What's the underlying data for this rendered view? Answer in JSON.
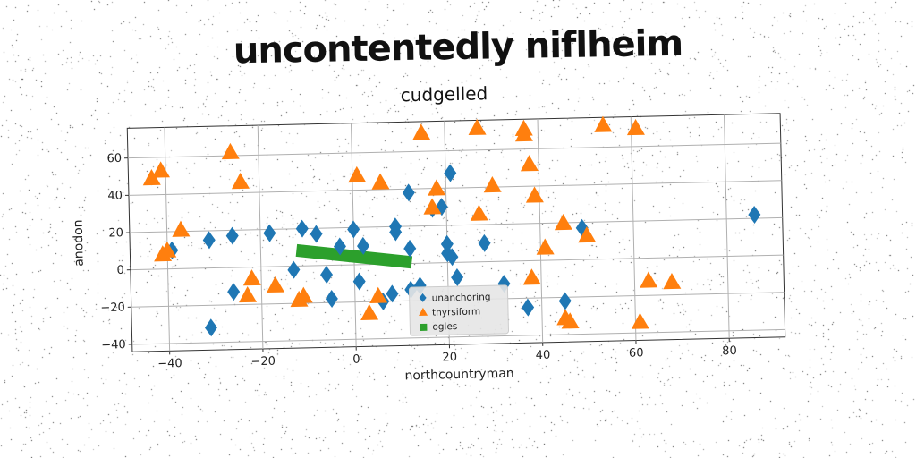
{
  "page_title": "uncontentedly niflheim",
  "chart_data": {
    "type": "scatter",
    "title": "cudgelled",
    "xlabel": "northcountryman",
    "ylabel": "anodon",
    "xlim": [
      -48,
      92
    ],
    "ylim": [
      -44,
      76
    ],
    "xticks": [
      -40,
      -20,
      0,
      20,
      40,
      60,
      80
    ],
    "yticks": [
      -40,
      -20,
      0,
      20,
      40,
      60
    ],
    "grid": true,
    "legend_position": "lower center",
    "series": [
      {
        "name": "unanchoring",
        "marker": "diamond",
        "color": "#1f77b4",
        "points": [
          [
            -39,
            10
          ],
          [
            -31,
            15
          ],
          [
            -31,
            -32
          ],
          [
            -26,
            17
          ],
          [
            -26,
            -13
          ],
          [
            -18,
            18
          ],
          [
            -13,
            -2
          ],
          [
            -11,
            20
          ],
          [
            -8,
            17
          ],
          [
            -6,
            -5
          ],
          [
            -5,
            -18
          ],
          [
            -3,
            10
          ],
          [
            0,
            19
          ],
          [
            1,
            -9
          ],
          [
            2,
            10
          ],
          [
            6,
            -20
          ],
          [
            8,
            -16
          ],
          [
            9,
            20
          ],
          [
            9,
            17
          ],
          [
            12,
            38
          ],
          [
            12,
            8
          ],
          [
            12,
            -14
          ],
          [
            14,
            -12
          ],
          [
            17,
            29
          ],
          [
            19,
            30
          ],
          [
            20,
            10
          ],
          [
            20,
            5
          ],
          [
            21,
            48
          ],
          [
            21,
            3
          ],
          [
            22,
            -8
          ],
          [
            28,
            10
          ],
          [
            32,
            -12
          ],
          [
            37,
            -25
          ],
          [
            45,
            -22
          ],
          [
            49,
            17
          ],
          [
            86,
            22
          ]
        ]
      },
      {
        "name": "thyrsiform",
        "marker": "triangle",
        "color": "#ff7f0e",
        "points": [
          [
            -43,
            49
          ],
          [
            -41,
            53
          ],
          [
            -41,
            8
          ],
          [
            -40,
            10
          ],
          [
            -37,
            21
          ],
          [
            -26,
            62
          ],
          [
            -24,
            46
          ],
          [
            -22,
            -6
          ],
          [
            -23,
            -15
          ],
          [
            -17,
            -10
          ],
          [
            -11,
            -16
          ],
          [
            -12,
            -18
          ],
          [
            1,
            48
          ],
          [
            6,
            44
          ],
          [
            5,
            -17
          ],
          [
            3,
            -26
          ],
          [
            15,
            70
          ],
          [
            18,
            40
          ],
          [
            17,
            30
          ],
          [
            27,
            26
          ],
          [
            27,
            72
          ],
          [
            30,
            41
          ],
          [
            37,
            71
          ],
          [
            37,
            68
          ],
          [
            38,
            52
          ],
          [
            39,
            35
          ],
          [
            38,
            -9
          ],
          [
            41,
            7
          ],
          [
            45,
            20
          ],
          [
            45,
            -31
          ],
          [
            46,
            -33
          ],
          [
            50,
            13
          ],
          [
            54,
            72
          ],
          [
            61,
            70
          ],
          [
            63,
            -12
          ],
          [
            68,
            -13
          ],
          [
            61,
            -34
          ]
        ]
      },
      {
        "name": "ogles",
        "marker": "square",
        "color": "#2ca02c",
        "line": [
          [
            -11,
            8
          ],
          [
            11,
            1
          ]
        ]
      }
    ]
  }
}
